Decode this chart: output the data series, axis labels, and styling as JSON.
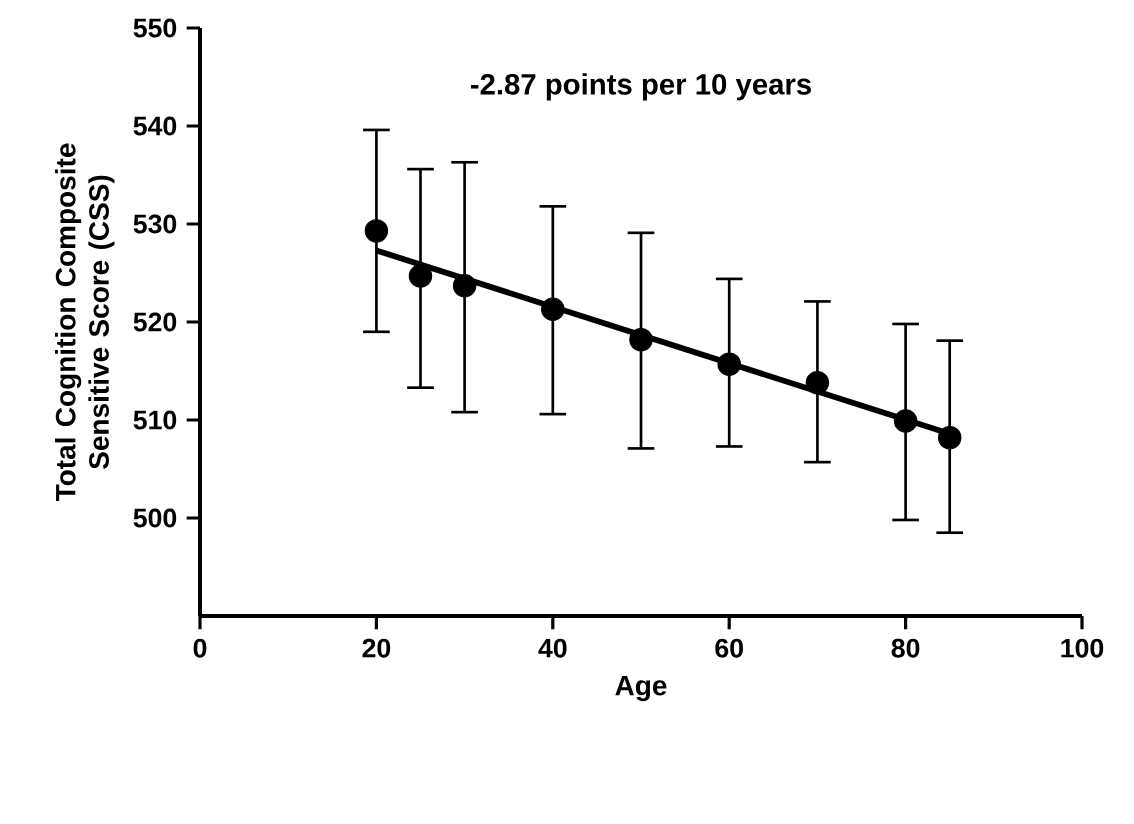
{
  "chart_data": {
    "type": "scatter",
    "xlabel": "Age",
    "ylabel": "Total Cognition Composite Sensitive Score (CSS)",
    "annotations": [
      "-2.87 points per 10 years"
    ],
    "xlim": [
      0,
      100
    ],
    "ylim": [
      490,
      550
    ],
    "xticks": [
      0,
      20,
      40,
      60,
      80,
      100
    ],
    "yticks": [
      500,
      510,
      520,
      530,
      540,
      550
    ],
    "series": [
      {
        "type": "scatter",
        "color": "#000000",
        "marker": "circle",
        "x": [
          20,
          25,
          30,
          40,
          50,
          60,
          70,
          80,
          85
        ],
        "values": [
          529.3,
          524.7,
          523.7,
          521.3,
          518.2,
          515.7,
          513.8,
          509.9,
          508.2
        ],
        "errors": [
          [
            519.0,
            539.6
          ],
          [
            513.3,
            535.6
          ],
          [
            510.8,
            536.3
          ],
          [
            510.6,
            531.8
          ],
          [
            507.1,
            529.1
          ],
          [
            507.3,
            524.4
          ],
          [
            505.7,
            522.1
          ],
          [
            499.8,
            519.8
          ],
          [
            498.5,
            518.1
          ]
        ]
      },
      {
        "type": "line",
        "color": "#000000",
        "x": [
          20,
          85
        ],
        "values": [
          527.3,
          508.6
        ]
      }
    ]
  }
}
